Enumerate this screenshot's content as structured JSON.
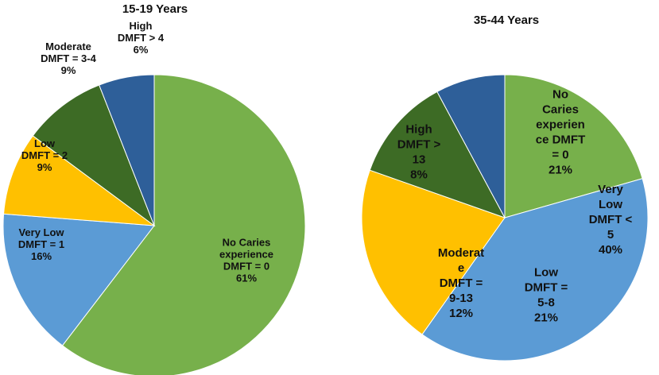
{
  "chart_data": [
    {
      "type": "pie",
      "title": "15-19 Years",
      "slices": [
        {
          "label_lines": [
            "No Caries",
            "experience",
            "DMFT = 0",
            "61%"
          ],
          "value": 61,
          "color": "#77b04b"
        },
        {
          "label_lines": [
            "Very Low",
            "DMFT = 1",
            "16%"
          ],
          "value": 16,
          "color": "#5b9bd5"
        },
        {
          "label_lines": [
            "Low",
            "DMFT = 2",
            "9%"
          ],
          "value": 9,
          "color": "#ffc000"
        },
        {
          "label_lines": [
            "Moderate",
            "DMFT = 3-4",
            "9%"
          ],
          "value": 9,
          "color": "#3d6b25"
        },
        {
          "label_lines": [
            "High",
            "DMFT > 4",
            "6%"
          ],
          "value": 6,
          "color": "#2e5f99"
        }
      ]
    },
    {
      "type": "pie",
      "title": "35-44 Years",
      "slices": [
        {
          "label_lines": [
            "No",
            "Caries",
            "experien",
            "ce DMFT",
            "= 0",
            "21%"
          ],
          "value": 21,
          "color": "#77b04b"
        },
        {
          "label_lines": [
            "Very",
            "Low",
            "DMFT <",
            "5",
            "40%"
          ],
          "value": 40,
          "color": "#5b9bd5"
        },
        {
          "label_lines": [
            "Low",
            "DMFT =",
            "5-8",
            "21%"
          ],
          "value": 21,
          "color": "#ffc000"
        },
        {
          "label_lines": [
            "Moderat",
            "e",
            "DMFT =",
            "9-13",
            "12%"
          ],
          "value": 12,
          "color": "#3d6b25"
        },
        {
          "label_lines": [
            "High",
            "DMFT >",
            "13",
            "8%"
          ],
          "value": 8,
          "color": "#2e5f99"
        }
      ]
    }
  ]
}
